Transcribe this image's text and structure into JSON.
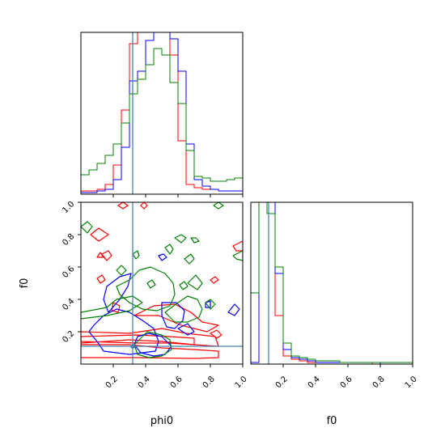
{
  "chart_data": {
    "type": "corner",
    "parameters": [
      "phi0",
      "f0"
    ],
    "axis_labels": {
      "x_bottom_left": "phi0",
      "x_bottom_right": "f0",
      "y_left": "f0"
    },
    "ranges": {
      "phi0": [
        0.0,
        1.0
      ],
      "f0": [
        0.0,
        1.0
      ]
    },
    "ticks": {
      "phi0": [
        "0.2",
        "0.4",
        "0.6",
        "0.8",
        "1.0"
      ],
      "f0": [
        "0.2",
        "0.4",
        "0.6",
        "0.8",
        "1.0"
      ]
    },
    "truth": {
      "phi0": 0.32,
      "f0": 0.11
    },
    "truth_color": "#4682b4",
    "series": [
      {
        "color": "#ff0000"
      },
      {
        "color": "#0000ff"
      },
      {
        "color": "#008000"
      }
    ],
    "hist_phi0": {
      "bin_width": 0.05,
      "red": [
        0.02,
        0.02,
        0.03,
        0.06,
        0.18,
        0.52,
        0.93,
        1.0,
        1.0,
        1.0,
        1.0,
        0.86,
        0.33,
        0.06,
        0.04,
        0.03,
        0.03,
        0.02,
        0.02,
        0.02
      ],
      "blue": [
        0.01,
        0.01,
        0.02,
        0.03,
        0.09,
        0.29,
        0.7,
        0.76,
        0.95,
        1.0,
        1.0,
        0.96,
        0.76,
        0.31,
        0.09,
        0.05,
        0.03,
        0.02,
        0.02,
        0.02
      ],
      "green": [
        0.12,
        0.15,
        0.19,
        0.24,
        0.31,
        0.44,
        0.62,
        0.71,
        0.8,
        0.9,
        0.86,
        0.69,
        0.56,
        0.27,
        0.11,
        0.1,
        0.08,
        0.08,
        0.09,
        0.1
      ]
    },
    "hist_f0": {
      "bin_width": 0.05,
      "red": [
        0.44,
        1.0,
        1.0,
        0.3,
        0.05,
        0.03,
        0.02,
        0.01,
        0.01,
        0.01,
        0.01,
        0.01,
        0.01,
        0.01,
        0.01,
        0.0,
        0.0,
        0.0,
        0.0,
        0.0
      ],
      "blue": [
        0.01,
        1.0,
        1.0,
        0.56,
        0.09,
        0.04,
        0.03,
        0.02,
        0.01,
        0.01,
        0.01,
        0.01,
        0.01,
        0.01,
        0.01,
        0.01,
        0.0,
        0.0,
        0.0,
        0.0
      ],
      "green": [
        0.44,
        1.0,
        0.93,
        0.6,
        0.13,
        0.05,
        0.04,
        0.03,
        0.02,
        0.02,
        0.02,
        0.01,
        0.01,
        0.01,
        0.01,
        0.01,
        0.01,
        0.01,
        0.01,
        0.01
      ]
    },
    "contours": [
      {
        "series": 0,
        "points": [
          [
            0.0,
            0.04
          ],
          [
            0.35,
            0.04
          ],
          [
            0.7,
            0.035
          ],
          [
            0.85,
            0.04
          ],
          [
            0.85,
            0.08
          ],
          [
            0.7,
            0.09
          ],
          [
            0.5,
            0.1
          ],
          [
            0.3,
            0.12
          ],
          [
            0.0,
            0.12
          ]
        ]
      },
      {
        "series": 0,
        "points": [
          [
            0.0,
            0.13
          ],
          [
            0.3,
            0.15
          ],
          [
            0.5,
            0.14
          ],
          [
            0.7,
            0.12
          ],
          [
            0.85,
            0.11
          ],
          [
            0.83,
            0.17
          ],
          [
            0.65,
            0.19
          ],
          [
            0.5,
            0.22
          ],
          [
            0.3,
            0.19
          ],
          [
            0.0,
            0.2
          ]
        ]
      },
      {
        "series": 0,
        "points": [
          [
            0.33,
            0.3
          ],
          [
            0.45,
            0.36
          ],
          [
            0.58,
            0.37
          ],
          [
            0.68,
            0.32
          ],
          [
            0.75,
            0.26
          ],
          [
            0.85,
            0.24
          ],
          [
            0.78,
            0.2
          ],
          [
            0.62,
            0.24
          ],
          [
            0.48,
            0.3
          ]
        ]
      },
      {
        "series": 0,
        "points": [
          [
            0.0,
            0.17
          ],
          [
            0.35,
            0.18
          ],
          [
            0.55,
            0.17
          ],
          [
            0.7,
            0.16
          ],
          [
            0.7,
            0.12
          ],
          [
            0.55,
            0.13
          ],
          [
            0.35,
            0.13
          ],
          [
            0.0,
            0.14
          ]
        ]
      },
      {
        "series": 0,
        "points": [
          [
            0.23,
            0.98
          ],
          [
            0.26,
            1.0
          ],
          [
            0.29,
            0.98
          ],
          [
            0.26,
            0.96
          ]
        ]
      },
      {
        "series": 0,
        "points": [
          [
            0.37,
            0.98
          ],
          [
            0.39,
            1.0
          ],
          [
            0.41,
            0.98
          ],
          [
            0.39,
            0.96
          ]
        ]
      },
      {
        "series": 0,
        "points": [
          [
            0.06,
            0.8
          ],
          [
            0.11,
            0.84
          ],
          [
            0.17,
            0.8
          ],
          [
            0.11,
            0.76
          ]
        ]
      },
      {
        "series": 0,
        "points": [
          [
            0.13,
            0.68
          ],
          [
            0.17,
            0.7
          ],
          [
            0.19,
            0.67
          ],
          [
            0.16,
            0.64
          ]
        ]
      },
      {
        "series": 0,
        "points": [
          [
            0.1,
            0.53
          ],
          [
            0.13,
            0.55
          ],
          [
            0.15,
            0.52
          ],
          [
            0.12,
            0.5
          ]
        ]
      },
      {
        "series": 0,
        "points": [
          [
            0.2,
            0.38
          ],
          [
            0.24,
            0.36
          ],
          [
            0.23,
            0.32
          ],
          [
            0.19,
            0.33
          ]
        ]
      },
      {
        "series": 0,
        "points": [
          [
            0.8,
            0.52
          ],
          [
            0.83,
            0.54
          ],
          [
            0.85,
            0.52
          ],
          [
            0.82,
            0.5
          ]
        ]
      },
      {
        "series": 0,
        "points": [
          [
            0.8,
            0.19
          ],
          [
            0.84,
            0.21
          ],
          [
            0.87,
            0.18
          ],
          [
            0.84,
            0.16
          ]
        ]
      },
      {
        "series": 0,
        "points": [
          [
            0.94,
            0.73
          ],
          [
            1.0,
            0.76
          ],
          [
            1.0,
            0.7
          ],
          [
            0.96,
            0.7
          ]
        ]
      },
      {
        "series": 0,
        "points": [
          [
            0.1,
            0.66
          ],
          [
            0.12,
            0.69
          ],
          [
            0.14,
            0.66
          ]
        ]
      },
      {
        "series": 1,
        "points": [
          [
            0.14,
            0.08
          ],
          [
            0.3,
            0.06
          ],
          [
            0.46,
            0.08
          ],
          [
            0.48,
            0.14
          ],
          [
            0.45,
            0.22
          ],
          [
            0.38,
            0.27
          ],
          [
            0.3,
            0.32
          ],
          [
            0.22,
            0.34
          ],
          [
            0.14,
            0.3
          ],
          [
            0.08,
            0.24
          ],
          [
            0.05,
            0.2
          ],
          [
            0.1,
            0.14
          ]
        ]
      },
      {
        "series": 1,
        "points": [
          [
            0.17,
            0.32
          ],
          [
            0.24,
            0.4
          ],
          [
            0.29,
            0.48
          ],
          [
            0.31,
            0.56
          ],
          [
            0.24,
            0.54
          ],
          [
            0.16,
            0.48
          ],
          [
            0.14,
            0.4
          ]
        ]
      },
      {
        "series": 1,
        "points": [
          [
            0.35,
            0.17
          ],
          [
            0.42,
            0.19
          ],
          [
            0.5,
            0.17
          ],
          [
            0.56,
            0.11
          ],
          [
            0.52,
            0.06
          ],
          [
            0.45,
            0.05
          ],
          [
            0.37,
            0.07
          ],
          [
            0.33,
            0.12
          ]
        ]
      },
      {
        "series": 1,
        "points": [
          [
            0.5,
            0.38
          ],
          [
            0.59,
            0.38
          ],
          [
            0.64,
            0.33
          ],
          [
            0.63,
            0.27
          ],
          [
            0.58,
            0.22
          ],
          [
            0.53,
            0.23
          ],
          [
            0.5,
            0.3
          ]
        ]
      },
      {
        "series": 1,
        "points": [
          [
            0.48,
            0.67
          ],
          [
            0.51,
            0.68
          ],
          [
            0.53,
            0.66
          ],
          [
            0.5,
            0.64
          ]
        ]
      },
      {
        "series": 1,
        "points": [
          [
            0.6,
            0.22
          ],
          [
            0.66,
            0.25
          ],
          [
            0.7,
            0.2
          ],
          [
            0.66,
            0.18
          ]
        ]
      },
      {
        "series": 1,
        "points": [
          [
            0.91,
            0.32
          ],
          [
            0.95,
            0.37
          ],
          [
            0.98,
            0.34
          ],
          [
            0.95,
            0.3
          ]
        ]
      },
      {
        "series": 1,
        "points": [
          [
            0.77,
            0.38
          ],
          [
            0.8,
            0.39
          ],
          [
            0.8,
            0.35
          ],
          [
            0.77,
            0.35
          ]
        ]
      },
      {
        "series": 2,
        "points": [
          [
            0.22,
            0.48
          ],
          [
            0.3,
            0.52
          ],
          [
            0.36,
            0.58
          ],
          [
            0.43,
            0.6
          ],
          [
            0.52,
            0.56
          ],
          [
            0.57,
            0.5
          ],
          [
            0.58,
            0.43
          ],
          [
            0.55,
            0.36
          ],
          [
            0.47,
            0.33
          ],
          [
            0.38,
            0.34
          ],
          [
            0.3,
            0.38
          ],
          [
            0.24,
            0.43
          ]
        ]
      },
      {
        "series": 2,
        "points": [
          [
            0.0,
            0.32
          ],
          [
            0.16,
            0.35
          ],
          [
            0.22,
            0.4
          ],
          [
            0.32,
            0.42
          ],
          [
            0.38,
            0.38
          ],
          [
            0.3,
            0.33
          ],
          [
            0.16,
            0.3
          ],
          [
            0.0,
            0.28
          ]
        ]
      },
      {
        "series": 2,
        "points": [
          [
            0.33,
            0.12
          ],
          [
            0.41,
            0.2
          ],
          [
            0.5,
            0.18
          ],
          [
            0.55,
            0.15
          ],
          [
            0.56,
            0.09
          ],
          [
            0.5,
            0.05
          ],
          [
            0.42,
            0.04
          ],
          [
            0.35,
            0.06
          ]
        ]
      },
      {
        "series": 2,
        "points": [
          [
            0.52,
            0.32
          ],
          [
            0.6,
            0.38
          ],
          [
            0.66,
            0.42
          ],
          [
            0.72,
            0.4
          ],
          [
            0.75,
            0.34
          ],
          [
            0.73,
            0.29
          ],
          [
            0.66,
            0.26
          ],
          [
            0.58,
            0.26
          ]
        ]
      },
      {
        "series": 2,
        "points": [
          [
            0.0,
            0.85
          ],
          [
            0.04,
            0.88
          ],
          [
            0.07,
            0.85
          ],
          [
            0.04,
            0.81
          ]
        ]
      },
      {
        "series": 2,
        "points": [
          [
            0.58,
            0.78
          ],
          [
            0.62,
            0.8
          ],
          [
            0.65,
            0.78
          ],
          [
            0.62,
            0.75
          ]
        ]
      },
      {
        "series": 2,
        "points": [
          [
            0.68,
            0.78
          ],
          [
            0.71,
            0.78
          ],
          [
            0.73,
            0.76
          ],
          [
            0.7,
            0.75
          ]
        ]
      },
      {
        "series": 2,
        "points": [
          [
            0.22,
            0.58
          ],
          [
            0.25,
            0.61
          ],
          [
            0.28,
            0.58
          ],
          [
            0.25,
            0.55
          ]
        ]
      },
      {
        "series": 2,
        "points": [
          [
            0.32,
            0.68
          ],
          [
            0.35,
            0.7
          ],
          [
            0.36,
            0.67
          ],
          [
            0.34,
            0.65
          ]
        ]
      },
      {
        "series": 2,
        "points": [
          [
            0.52,
            0.72
          ],
          [
            0.55,
            0.74
          ],
          [
            0.57,
            0.71
          ],
          [
            0.55,
            0.68
          ]
        ]
      },
      {
        "series": 2,
        "points": [
          [
            0.64,
            0.65
          ],
          [
            0.68,
            0.68
          ],
          [
            0.7,
            0.65
          ],
          [
            0.67,
            0.62
          ]
        ]
      },
      {
        "series": 2,
        "points": [
          [
            0.66,
            0.5
          ],
          [
            0.71,
            0.55
          ],
          [
            0.75,
            0.5
          ],
          [
            0.72,
            0.46
          ]
        ]
      },
      {
        "series": 2,
        "points": [
          [
            0.82,
            0.98
          ],
          [
            0.85,
            1.0
          ],
          [
            0.88,
            0.98
          ],
          [
            0.85,
            0.96
          ]
        ]
      },
      {
        "series": 2,
        "points": [
          [
            0.94,
            0.67
          ],
          [
            1.0,
            0.7
          ],
          [
            1.0,
            0.64
          ],
          [
            0.96,
            0.65
          ]
        ]
      },
      {
        "series": 2,
        "points": [
          [
            0.77,
            0.38
          ],
          [
            0.8,
            0.4
          ],
          [
            0.83,
            0.37
          ],
          [
            0.8,
            0.34
          ]
        ]
      },
      {
        "series": 2,
        "points": [
          [
            0.61,
            0.49
          ],
          [
            0.64,
            0.51
          ],
          [
            0.66,
            0.48
          ],
          [
            0.63,
            0.46
          ]
        ]
      },
      {
        "series": 2,
        "points": [
          [
            0.41,
            0.5
          ],
          [
            0.44,
            0.52
          ],
          [
            0.46,
            0.49
          ],
          [
            0.43,
            0.47
          ]
        ]
      }
    ]
  }
}
